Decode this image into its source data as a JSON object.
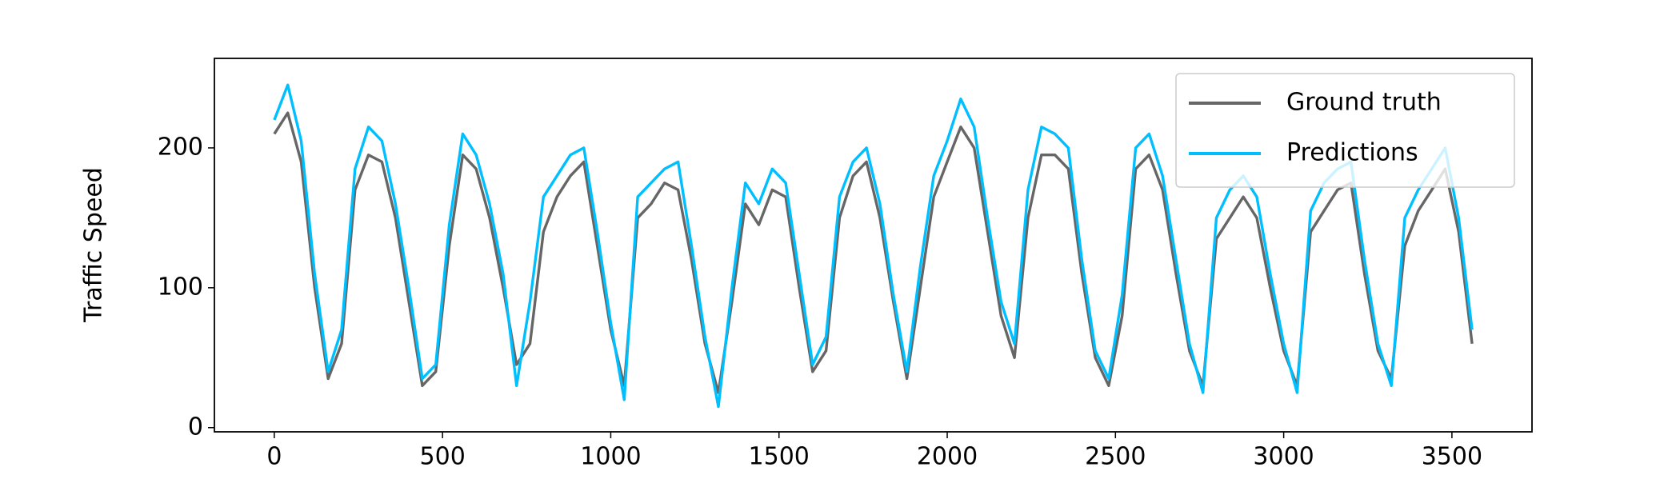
{
  "chart_data": {
    "type": "line",
    "y_label": "Traffic Speed",
    "x": [
      0,
      40,
      80,
      120,
      160,
      200,
      240,
      280,
      320,
      360,
      400,
      440,
      480,
      520,
      560,
      600,
      640,
      680,
      720,
      760,
      800,
      840,
      880,
      920,
      960,
      1000,
      1040,
      1080,
      1120,
      1160,
      1200,
      1240,
      1280,
      1320,
      1360,
      1400,
      1440,
      1480,
      1520,
      1560,
      1600,
      1640,
      1680,
      1720,
      1760,
      1800,
      1840,
      1880,
      1920,
      1960,
      2000,
      2040,
      2080,
      2120,
      2160,
      2200,
      2240,
      2280,
      2320,
      2360,
      2400,
      2440,
      2480,
      2520,
      2560,
      2600,
      2640,
      2680,
      2720,
      2760,
      2800,
      2840,
      2880,
      2920,
      2960,
      3000,
      3040,
      3080,
      3120,
      3160,
      3200,
      3240,
      3280,
      3320,
      3360,
      3400,
      3440,
      3480,
      3520,
      3560
    ],
    "series": [
      {
        "name": "Ground truth",
        "color": "#666666",
        "values": [
          210,
          225,
          190,
          100,
          35,
          60,
          170,
          195,
          190,
          150,
          90,
          30,
          40,
          130,
          195,
          185,
          150,
          100,
          45,
          60,
          140,
          165,
          180,
          190,
          130,
          70,
          30,
          150,
          160,
          175,
          170,
          120,
          60,
          25,
          90,
          160,
          145,
          170,
          165,
          100,
          40,
          55,
          150,
          180,
          190,
          150,
          90,
          35,
          100,
          165,
          190,
          215,
          200,
          140,
          80,
          50,
          150,
          195,
          195,
          185,
          110,
          50,
          30,
          80,
          185,
          195,
          170,
          110,
          55,
          30,
          135,
          150,
          165,
          150,
          100,
          55,
          30,
          140,
          155,
          170,
          175,
          110,
          55,
          35,
          130,
          155,
          170,
          185,
          140,
          60
        ]
      },
      {
        "name": "Predictions",
        "color": "#00bfff",
        "values": [
          220,
          245,
          205,
          110,
          40,
          70,
          185,
          215,
          205,
          160,
          100,
          35,
          45,
          145,
          210,
          195,
          160,
          110,
          30,
          90,
          165,
          180,
          195,
          200,
          140,
          75,
          20,
          165,
          175,
          185,
          190,
          130,
          65,
          15,
          100,
          175,
          160,
          185,
          175,
          110,
          45,
          65,
          165,
          190,
          200,
          160,
          95,
          40,
          115,
          180,
          205,
          235,
          215,
          150,
          90,
          60,
          170,
          215,
          210,
          200,
          120,
          55,
          35,
          95,
          200,
          210,
          180,
          120,
          60,
          25,
          150,
          170,
          180,
          165,
          110,
          60,
          25,
          155,
          175,
          185,
          190,
          120,
          60,
          30,
          150,
          170,
          185,
          200,
          150,
          70
        ]
      }
    ],
    "xlim": [
      -178,
      3738
    ],
    "ylim": [
      -3,
      264
    ],
    "xticks": [
      0,
      500,
      1000,
      1500,
      2000,
      2500,
      3000,
      3500
    ],
    "yticks": [
      0,
      100,
      200
    ],
    "legend": "upper right"
  }
}
